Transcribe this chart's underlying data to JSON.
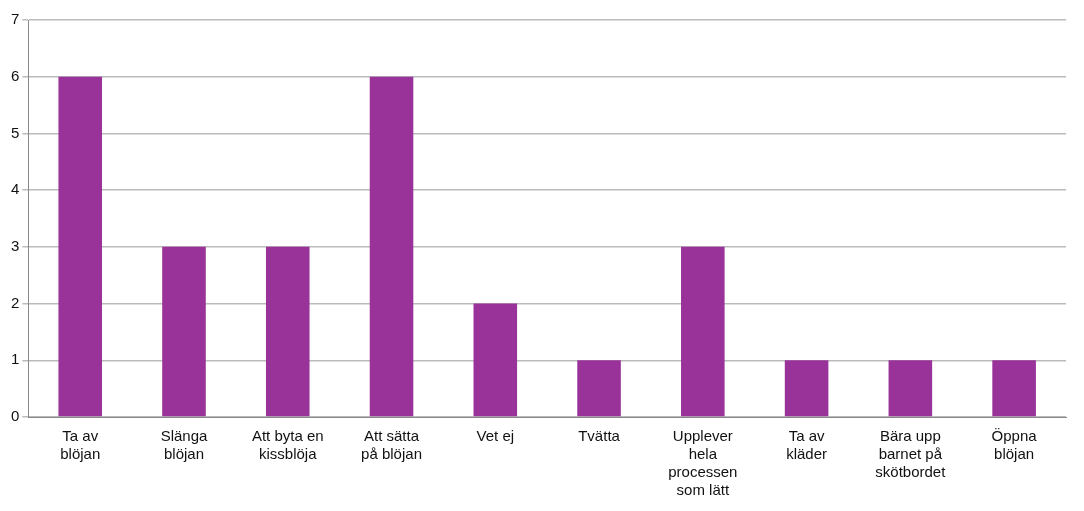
{
  "chart_data": {
    "type": "bar",
    "categories": [
      "Ta av blöjan",
      "Slänga blöjan",
      "Att byta en kissblöja",
      "Att sätta på blöjan",
      "Vet ej",
      "Tvätta",
      "Upplever hela processen som lätt",
      "Ta av kläder",
      "Bära upp barnet på skötbordet",
      "Öppna blöjan"
    ],
    "values": [
      6,
      3,
      3,
      6,
      2,
      1,
      3,
      1,
      1,
      1
    ],
    "color": "#993399",
    "ylim": [
      0,
      7
    ],
    "yticks": [
      0,
      1,
      2,
      3,
      4,
      5,
      6,
      7
    ],
    "grid": "y",
    "legend": false
  }
}
